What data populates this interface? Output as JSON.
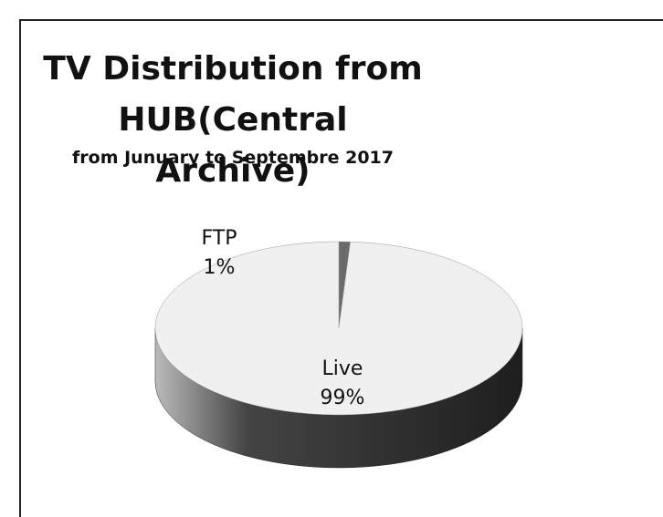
{
  "chart_data": {
    "type": "pie",
    "title": "TV Distribution from HUB(Central Archive)",
    "subtitle": "from Junuary to Septembre 2017",
    "categories": [
      "FTP",
      "Live"
    ],
    "values": [
      1,
      99
    ],
    "value_labels": [
      "1%",
      "99%"
    ],
    "colors": [
      "#6a6a6a",
      "#f0f0f0"
    ],
    "side_colors": [
      "#3a3a3a",
      "#2b2b2b"
    ]
  }
}
